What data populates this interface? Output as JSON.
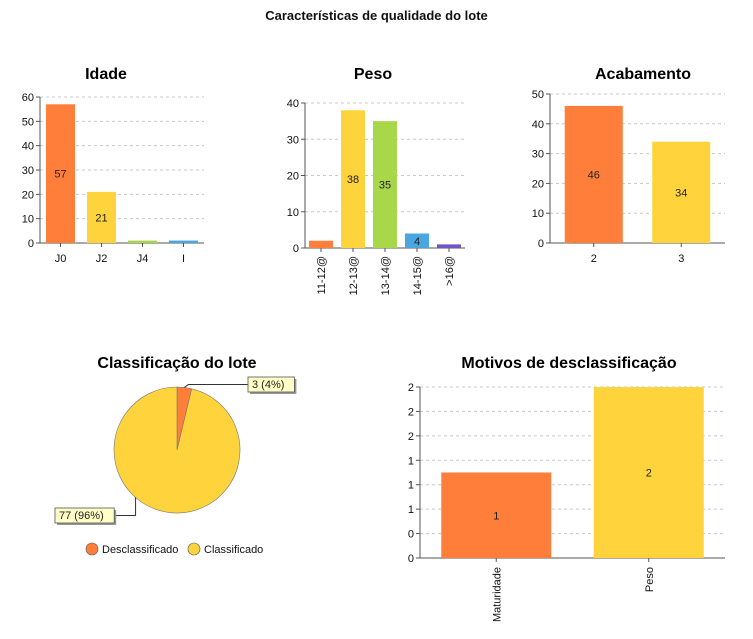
{
  "page_title": "Características de qualidade do lote",
  "colors": {
    "orange": "#FF7F3A",
    "yellow": "#FFD33C",
    "green": "#A8D84A",
    "blue": "#4AA6DE",
    "purple": "#6E55C8",
    "teal": "#4FB3C0"
  },
  "chart_data": [
    {
      "id": "idade",
      "type": "bar",
      "title": "Idade",
      "categories": [
        "J0",
        "J2",
        "J4",
        "I"
      ],
      "values": [
        57,
        21,
        1,
        1
      ],
      "data_labels": [
        "57",
        "21",
        "",
        ""
      ],
      "colors": [
        "#FF7F3A",
        "#FFD33C",
        "#A8D84A",
        "#4AA6DE"
      ],
      "ylim": [
        0,
        60
      ],
      "yticks": [
        "0",
        "10",
        "20",
        "30",
        "40",
        "50",
        "60"
      ],
      "grid": true
    },
    {
      "id": "peso",
      "type": "bar",
      "title": "Peso",
      "categories": [
        "11-12@",
        "12-13@",
        "13-14@",
        "14-15@",
        ">16@"
      ],
      "values": [
        2,
        38,
        35,
        4,
        1
      ],
      "data_labels": [
        "",
        "38",
        "35",
        "4",
        ""
      ],
      "colors": [
        "#FF7F3A",
        "#FFD33C",
        "#A8D84A",
        "#4AA6DE",
        "#6E55C8"
      ],
      "ylim": [
        0,
        40
      ],
      "yticks": [
        "0",
        "10",
        "20",
        "30",
        "40"
      ],
      "grid": true
    },
    {
      "id": "acabamento",
      "type": "bar",
      "title": "Acabamento",
      "categories": [
        "2",
        "3"
      ],
      "values": [
        46,
        34
      ],
      "data_labels": [
        "46",
        "34"
      ],
      "colors": [
        "#FF7F3A",
        "#FFD33C"
      ],
      "ylim": [
        0,
        50
      ],
      "yticks": [
        "0",
        "10",
        "20",
        "30",
        "40",
        "50"
      ],
      "grid": true
    },
    {
      "id": "classificacao",
      "type": "pie",
      "title": "Classificação do lote",
      "categories": [
        "Desclassificado",
        "Classificado"
      ],
      "values": [
        3,
        77
      ],
      "data_labels": [
        "3 (4%)",
        "77 (96%)"
      ],
      "colors": [
        "#FF7F3A",
        "#FFD33C"
      ],
      "legend": "bottom"
    },
    {
      "id": "motivos",
      "type": "bar",
      "title": "Motivos de desclassificação",
      "categories": [
        "Maturidade",
        "Peso"
      ],
      "values": [
        1,
        2
      ],
      "data_labels": [
        "1",
        "2"
      ],
      "colors": [
        "#FF7F3A",
        "#FFD33C"
      ],
      "ylim": [
        0,
        2
      ],
      "yticks": [
        "0",
        "0",
        "1",
        "1",
        "1",
        "2",
        "2",
        "2"
      ],
      "grid": true
    }
  ]
}
